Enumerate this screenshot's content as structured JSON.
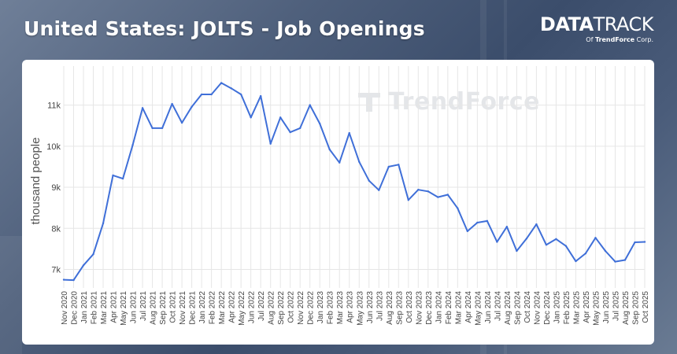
{
  "header": {
    "title": "United States: JOLTS - Job Openings"
  },
  "brand": {
    "logo_part1": "DATA",
    "logo_part2": "TRACK",
    "sub_prefix": "Of",
    "sub_company": "TrendForce",
    "sub_suffix": "Corp."
  },
  "watermark": {
    "text": "TrendForce"
  },
  "colors": {
    "line": "#3f6fd8",
    "grid": "#e6e6e6",
    "axis_text": "#444444"
  },
  "chart_data": {
    "type": "line",
    "title": "United States: JOLTS - Job Openings",
    "xlabel": "",
    "ylabel": "thousand people",
    "y_ticks": [
      7000,
      8000,
      9000,
      10000,
      11000
    ],
    "y_tick_labels": [
      "7k",
      "8k",
      "9k",
      "10k",
      "11k"
    ],
    "ylim": [
      6550,
      11950
    ],
    "grid": true,
    "categories": [
      "Nov 2020",
      "Dec 2020",
      "Jan 2021",
      "Feb 2021",
      "Mar 2021",
      "Apr 2021",
      "May 2021",
      "Jun 2021",
      "Jul 2021",
      "Aug 2021",
      "Sep 2021",
      "Oct 2021",
      "Nov 2021",
      "Dec 2021",
      "Jan 2022",
      "Feb 2022",
      "Mar 2022",
      "Apr 2022",
      "May 2022",
      "Jun 2022",
      "Jul 2022",
      "Aug 2022",
      "Sep 2022",
      "Oct 2022",
      "Nov 2022",
      "Dec 2022",
      "Jan 2023",
      "Feb 2023",
      "Mar 2023",
      "Apr 2023",
      "May 2023",
      "Jun 2023",
      "Jul 2023",
      "Aug 2023",
      "Sep 2023",
      "Oct 2023",
      "Nov 2023",
      "Dec 2023",
      "Jan 2024",
      "Feb 2024",
      "Mar 2024",
      "Apr 2024",
      "May 2024",
      "Jun 2024",
      "Jul 2024",
      "Aug 2024",
      "Sep 2024",
      "Oct 2024",
      "Nov 2024",
      "Dec 2024",
      "Jan 2025",
      "Feb 2025",
      "Mar 2025",
      "Apr 2025",
      "May 2025",
      "Jun 2025",
      "Jul 2025",
      "Aug 2025",
      "Sep 2025",
      "Oct 2025"
    ],
    "series": [
      {
        "values": [
          6750,
          6740,
          7100,
          7370,
          8120,
          9290,
          9210,
          10030,
          10930,
          10440,
          10440,
          11030,
          10570,
          10960,
          11260,
          11260,
          11540,
          11410,
          11260,
          10700,
          11220,
          10060,
          10700,
          10340,
          10440,
          11000,
          10550,
          9920,
          9600,
          10320,
          9620,
          9160,
          8930,
          9500,
          9550,
          8690,
          8940,
          8900,
          8760,
          8820,
          8490,
          7930,
          8140,
          8180,
          7670,
          8040,
          7450,
          7750,
          8100,
          7600,
          7740,
          7570,
          7200,
          7390,
          7770,
          7450,
          7190,
          7230,
          7660,
          7670
        ]
      }
    ]
  }
}
